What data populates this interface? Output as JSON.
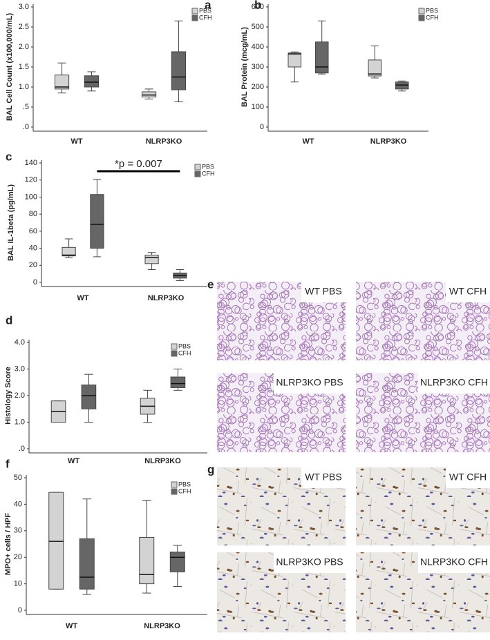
{
  "chart_data": [
    {
      "type": "box",
      "panel_label": "a",
      "ylabel": "BAL Cell Count (x100,000/mL)",
      "categories": [
        "WT",
        "NLRP3KO"
      ],
      "series": [
        {
          "name": "PBS",
          "color": "#d3d3d3",
          "values": [
            {
              "min": 0.85,
              "q1": 0.95,
              "median": 1.0,
              "q3": 1.3,
              "max": 1.6
            },
            {
              "min": 0.7,
              "q1": 0.75,
              "median": 0.8,
              "q3": 0.88,
              "max": 0.95
            }
          ]
        },
        {
          "name": "CFH",
          "color": "#666666",
          "values": [
            {
              "min": 0.9,
              "q1": 1.0,
              "median": 1.12,
              "q3": 1.28,
              "max": 1.38
            },
            {
              "min": 0.63,
              "q1": 0.93,
              "median": 1.25,
              "q3": 1.88,
              "max": 2.65
            }
          ]
        }
      ],
      "ylim": [
        0,
        3
      ],
      "yticks": [
        {
          "value": 0,
          "label": ".0"
        },
        {
          "value": 0.5,
          "label": ".5"
        },
        {
          "value": 1,
          "label": "1.0"
        },
        1.5,
        {
          "value": 2,
          "label": "2.0"
        },
        2.5,
        {
          "value": 3,
          "label": "3.0"
        }
      ]
    },
    {
      "type": "box",
      "panel_label": "b",
      "ylabel": "BAL Protein (mcg/mL)",
      "categories": [
        "WT",
        "NLRP3KO"
      ],
      "series": [
        {
          "name": "PBS",
          "color": "#d3d3d3",
          "values": [
            {
              "min": 225,
              "q1": 300,
              "median": 365,
              "q3": 370,
              "max": 375
            },
            {
              "min": 245,
              "q1": 255,
              "median": 265,
              "q3": 335,
              "max": 405
            }
          ]
        },
        {
          "name": "CFH",
          "color": "#666666",
          "values": [
            {
              "min": 265,
              "q1": 270,
              "median": 300,
              "q3": 425,
              "max": 530
            },
            {
              "min": 180,
              "q1": 190,
              "median": 210,
              "q3": 225,
              "max": 230
            }
          ]
        }
      ],
      "ylim": [
        0,
        600
      ],
      "yticks": [
        0,
        100,
        200,
        300,
        400,
        500,
        600
      ]
    },
    {
      "type": "box",
      "panel_label": "c",
      "ylabel": "BAL IL-1beta (pg/mL)",
      "annotation": "*p = 0.007",
      "categories": [
        "WT",
        "NLRP3KO"
      ],
      "series": [
        {
          "name": "PBS",
          "color": "#d3d3d3",
          "values": [
            {
              "min": 29,
              "q1": 31,
              "median": 32,
              "q3": 41,
              "max": 51
            },
            {
              "min": 15,
              "q1": 22,
              "median": 29,
              "q3": 32,
              "max": 35
            }
          ]
        },
        {
          "name": "CFH",
          "color": "#666666",
          "values": [
            {
              "min": 30,
              "q1": 40,
              "median": 68,
              "q3": 103,
              "max": 121
            },
            {
              "min": 2,
              "q1": 5,
              "median": 8,
              "q3": 11,
              "max": 15
            }
          ]
        }
      ],
      "ylim": [
        0,
        140
      ],
      "yticks": [
        0,
        20,
        40,
        60,
        80,
        100,
        120,
        140
      ]
    },
    {
      "type": "box",
      "panel_label": "d",
      "ylabel": "Histology Score",
      "categories": [
        "WT",
        "NLRP3KO"
      ],
      "series": [
        {
          "name": "PBS",
          "color": "#d3d3d3",
          "values": [
            {
              "min": 1.0,
              "q1": 1.0,
              "median": 1.4,
              "q3": 1.8,
              "max": 1.8
            },
            {
              "min": 1.0,
              "q1": 1.3,
              "median": 1.6,
              "q3": 1.9,
              "max": 2.2
            }
          ]
        },
        {
          "name": "CFH",
          "color": "#666666",
          "values": [
            {
              "min": 1.0,
              "q1": 1.5,
              "median": 2.0,
              "q3": 2.4,
              "max": 2.8
            },
            {
              "min": 2.2,
              "q1": 2.3,
              "median": 2.45,
              "q3": 2.7,
              "max": 3.0
            }
          ]
        }
      ],
      "ylim": [
        0,
        4
      ],
      "yticks": [
        {
          "value": 0,
          "label": ".0"
        },
        {
          "value": 1,
          "label": "1.0"
        },
        {
          "value": 2,
          "label": "2.0"
        },
        {
          "value": 3,
          "label": "3.0"
        },
        {
          "value": 4,
          "label": "4.0"
        }
      ]
    },
    {
      "type": "box",
      "panel_label": "f",
      "ylabel": "MPO+ cells / HPF",
      "categories": [
        "WT",
        "NLRP3KO"
      ],
      "series": [
        {
          "name": "PBS",
          "color": "#d3d3d3",
          "values": [
            {
              "min": 8,
              "q1": 8,
              "median": 26,
              "q3": 44.5,
              "max": 44.5
            },
            {
              "min": 6.5,
              "q1": 10,
              "median": 13.5,
              "q3": 27.5,
              "max": 41.5
            }
          ]
        },
        {
          "name": "CFH",
          "color": "#666666",
          "values": [
            {
              "min": 6,
              "q1": 8,
              "median": 12.5,
              "q3": 27,
              "max": 42
            },
            {
              "min": 9,
              "q1": 14.5,
              "median": 20,
              "q3": 22,
              "max": 24.5
            }
          ]
        }
      ],
      "ylim": [
        0,
        50
      ],
      "yticks": [
        0,
        10,
        20,
        30,
        40,
        50
      ]
    }
  ],
  "image_panels": [
    {
      "panel_label": "e",
      "images": [
        "WT PBS",
        "WT CFH",
        "NLRP3KO PBS",
        "NLRP3KO CFH"
      ]
    },
    {
      "panel_label": "g",
      "images": [
        "WT PBS",
        "WT CFH",
        "NLRP3KO PBS",
        "NLRP3KO CFH"
      ]
    }
  ]
}
